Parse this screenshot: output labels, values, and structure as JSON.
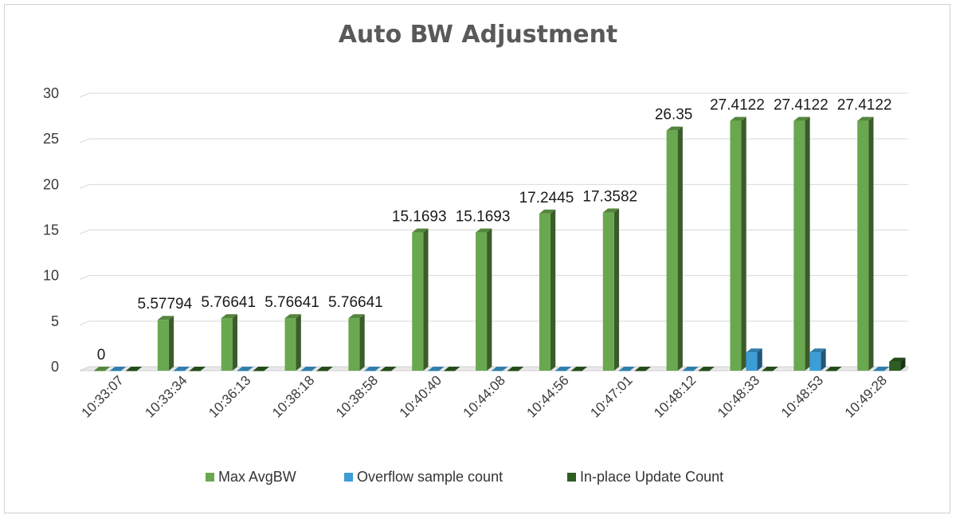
{
  "chart_data": {
    "type": "bar",
    "title": "Auto BW Adjustment",
    "categories": [
      "10:33:07",
      "10:33:34",
      "10:36:13",
      "10:38:18",
      "10:38:58",
      "10:40:40",
      "10:44:08",
      "10:44:56",
      "10:47:01",
      "10:48:12",
      "10:48:33",
      "10:48:53",
      "10:49:28"
    ],
    "series": [
      {
        "name": "Max AvgBW",
        "color": "#6aa84f",
        "values": [
          0,
          5.57794,
          5.76641,
          5.76641,
          5.76641,
          15.1693,
          15.1693,
          17.2445,
          17.3582,
          26.35,
          27.4122,
          27.4122,
          27.4122
        ]
      },
      {
        "name": "Overflow sample count",
        "color": "#3d9dd6",
        "values": [
          0,
          0,
          0,
          0,
          0,
          0,
          0,
          0,
          0,
          0,
          2,
          2,
          0
        ]
      },
      {
        "name": "In-place Update Count",
        "color": "#2e5e22",
        "values": [
          0,
          0,
          0,
          0,
          0,
          0,
          0,
          0,
          0,
          0,
          0,
          0,
          1
        ]
      }
    ],
    "data_labels": [
      "0",
      "5.57794",
      "5.76641",
      "5.76641",
      "5.76641",
      "15.1693",
      "15.1693",
      "17.2445",
      "17.3582",
      "26.35",
      "27.4122",
      "27.4122",
      "27.4122"
    ],
    "ylim": [
      0,
      30
    ],
    "yticks": [
      0,
      5,
      10,
      15,
      20,
      25,
      30
    ],
    "grid": true,
    "legend": "bottom",
    "xlabel": "",
    "ylabel": ""
  }
}
